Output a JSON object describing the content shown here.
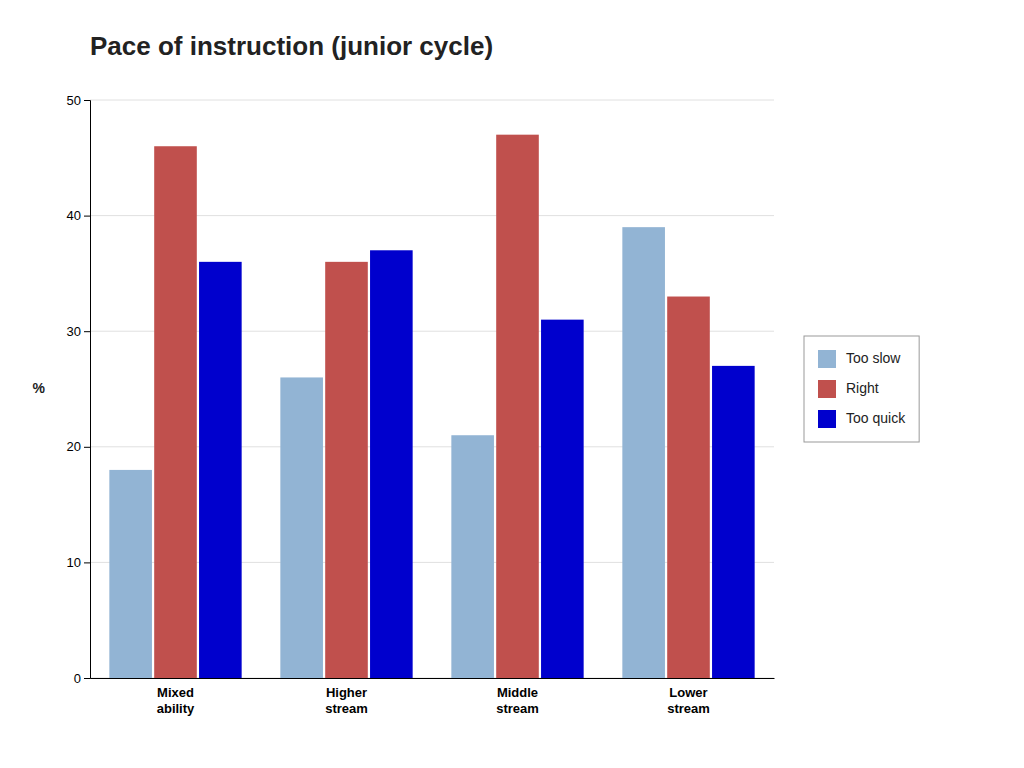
{
  "chart_data": {
    "type": "bar",
    "title": "Pace of instruction (junior cycle)",
    "categories": [
      "Mixed\nability",
      "Higher\nstream",
      "Middle\nstream",
      "Lower\nstream"
    ],
    "series": [
      {
        "name": "Too slow",
        "color": "#92b4d4",
        "values": [
          18,
          26,
          21,
          39
        ]
      },
      {
        "name": "Right",
        "color": "#c0504d",
        "values": [
          46,
          36,
          47,
          33
        ]
      },
      {
        "name": "Too quick",
        "color": "#0000cd",
        "values": [
          36,
          37,
          31,
          27
        ]
      }
    ],
    "ylabel": "%",
    "ylim": [
      0,
      50
    ],
    "yticks": [
      0,
      10,
      20,
      30,
      40,
      50
    ],
    "grid": true,
    "legend": "right"
  }
}
